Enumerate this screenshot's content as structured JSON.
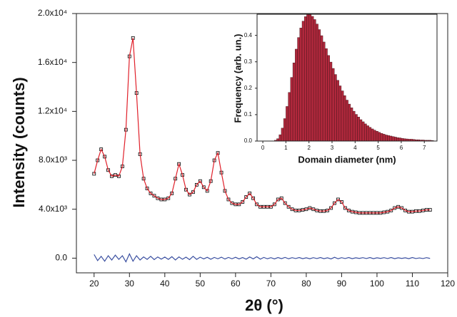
{
  "chart_data": [
    {
      "type": "line",
      "x_label": "2θ (°)",
      "y_label": "Intensity (counts)",
      "x": [
        20,
        21,
        22,
        23,
        24,
        25,
        26,
        27,
        28,
        29,
        30,
        31,
        32,
        33,
        34,
        35,
        36,
        37,
        38,
        39,
        40,
        41,
        42,
        43,
        44,
        45,
        46,
        47,
        48,
        49,
        50,
        51,
        52,
        53,
        54,
        55,
        56,
        57,
        58,
        59,
        60,
        61,
        62,
        63,
        64,
        65,
        66,
        67,
        68,
        69,
        70,
        71,
        72,
        73,
        74,
        75,
        76,
        77,
        78,
        79,
        80,
        81,
        82,
        83,
        84,
        85,
        86,
        87,
        88,
        89,
        90,
        91,
        92,
        93,
        94,
        95,
        96,
        97,
        98,
        99,
        100,
        101,
        102,
        103,
        104,
        105,
        106,
        107,
        108,
        109,
        110,
        111,
        112,
        113,
        114,
        115
      ],
      "series": [
        {
          "color": "#000000",
          "marker": "square",
          "values": [
            6900,
            8000,
            8900,
            8300,
            7200,
            6700,
            6800,
            6700,
            7500,
            10500,
            16500,
            18000,
            13500,
            8500,
            6500,
            5700,
            5300,
            5100,
            4900,
            4800,
            4800,
            4900,
            5300,
            6500,
            7700,
            6800,
            5600,
            5200,
            5400,
            6000,
            6300,
            5800,
            5500,
            6300,
            8000,
            8600,
            7000,
            5500,
            4800,
            4500,
            4400,
            4400,
            4600,
            5000,
            5300,
            4900,
            4400,
            4200,
            4200,
            4200,
            4200,
            4400,
            4800,
            4900,
            4500,
            4200,
            4000,
            3900,
            3900,
            3950,
            4000,
            4100,
            4000,
            3900,
            3850,
            3850,
            3900,
            4100,
            4500,
            4800,
            4600,
            4100,
            3900,
            3800,
            3750,
            3700,
            3700,
            3700,
            3700,
            3700,
            3700,
            3700,
            3750,
            3800,
            3900,
            4100,
            4200,
            4100,
            3900,
            3800,
            3800,
            3850,
            3850,
            3900,
            3950,
            3950
          ]
        },
        {
          "color": "#e0202a",
          "values": [
            6900,
            8000,
            8900,
            8300,
            7200,
            6700,
            6800,
            6700,
            7500,
            10500,
            16500,
            18000,
            13500,
            8500,
            6500,
            5700,
            5300,
            5100,
            4900,
            4800,
            4800,
            4900,
            5300,
            6500,
            7700,
            6800,
            5600,
            5200,
            5400,
            6000,
            6300,
            5800,
            5500,
            6300,
            8000,
            8600,
            7000,
            5500,
            4800,
            4500,
            4400,
            4400,
            4600,
            5000,
            5300,
            4900,
            4400,
            4200,
            4200,
            4200,
            4200,
            4400,
            4800,
            4900,
            4500,
            4200,
            4000,
            3900,
            3900,
            3950,
            4000,
            4100,
            4000,
            3900,
            3850,
            3850,
            3900,
            4100,
            4500,
            4800,
            4600,
            4100,
            3900,
            3800,
            3750,
            3700,
            3700,
            3700,
            3700,
            3700,
            3700,
            3700,
            3750,
            3800,
            3900,
            4100,
            4200,
            4100,
            3900,
            3800,
            3800,
            3850,
            3850,
            3900,
            3950,
            3950
          ]
        },
        {
          "color": "#3a4fa0",
          "values": [
            300,
            -200,
            150,
            -250,
            200,
            -150,
            250,
            -100,
            200,
            -300,
            350,
            -250,
            200,
            -150,
            100,
            -100,
            150,
            -120,
            100,
            -80,
            90,
            -100,
            120,
            -150,
            100,
            -90,
            80,
            -120,
            150,
            -100,
            80,
            -60,
            70,
            -90,
            60,
            -50,
            80,
            -70,
            60,
            -50,
            70,
            -60,
            50,
            -80,
            100,
            -60,
            120,
            -80,
            60,
            -50,
            40,
            -60,
            50,
            -40,
            60,
            -50,
            40,
            -30,
            50,
            -40,
            30,
            -50,
            40,
            -30,
            50,
            -40,
            30,
            -60,
            70,
            -50,
            40,
            -30,
            50,
            -40,
            30,
            -20,
            40,
            -30,
            50,
            -40,
            30,
            -20,
            40,
            -30,
            50,
            -40,
            30,
            -20,
            30,
            -40,
            50,
            -30,
            20,
            -30,
            40,
            -20
          ]
        }
      ],
      "xlim": [
        15,
        120
      ],
      "xticks": [
        20,
        30,
        40,
        50,
        60,
        70,
        80,
        90,
        100,
        110,
        120
      ],
      "ylim": [
        -1200,
        20000
      ],
      "yticks": [
        {
          "value": 0,
          "label": "0.0"
        },
        {
          "value": 4000,
          "label": "4.0x10³"
        },
        {
          "value": 8000,
          "label": "8.0x10³"
        },
        {
          "value": 12000,
          "label": "1.2x10⁴"
        },
        {
          "value": 16000,
          "label": "1.6x10⁴"
        },
        {
          "value": 20000,
          "label": "2.0x10⁴"
        }
      ]
    },
    {
      "type": "histogram",
      "x_label": "Domain diameter (nm)",
      "y_label": "Frequency (arb. un.)",
      "color": "#b0283c",
      "bins": [
        0.4,
        0.5,
        0.6,
        0.7,
        0.8,
        0.9,
        1.0,
        1.1,
        1.2,
        1.3,
        1.4,
        1.5,
        1.6,
        1.7,
        1.8,
        1.9,
        2.0,
        2.1,
        2.2,
        2.3,
        2.4,
        2.5,
        2.6,
        2.7,
        2.8,
        2.9,
        3.0,
        3.1,
        3.2,
        3.3,
        3.4,
        3.5,
        3.6,
        3.7,
        3.8,
        3.9,
        4.0,
        4.1,
        4.2,
        4.3,
        4.4,
        4.5,
        4.6,
        4.7,
        4.8,
        4.9,
        5.0,
        5.1,
        5.2,
        5.3,
        5.4,
        5.5,
        5.6,
        5.7,
        5.8,
        5.9,
        6.0,
        6.1,
        6.2,
        6.3,
        6.4,
        6.5,
        6.6,
        6.7,
        6.8,
        6.9,
        7.0,
        7.1,
        7.2,
        7.3,
        7.4
      ],
      "values": [
        0.0005,
        0.003,
        0.009,
        0.024,
        0.049,
        0.085,
        0.131,
        0.184,
        0.241,
        0.296,
        0.348,
        0.392,
        0.428,
        0.454,
        0.471,
        0.479,
        0.479,
        0.472,
        0.46,
        0.443,
        0.422,
        0.399,
        0.375,
        0.35,
        0.324,
        0.299,
        0.275,
        0.252,
        0.23,
        0.209,
        0.19,
        0.172,
        0.155,
        0.14,
        0.126,
        0.113,
        0.101,
        0.091,
        0.081,
        0.073,
        0.065,
        0.058,
        0.052,
        0.046,
        0.041,
        0.037,
        0.033,
        0.029,
        0.026,
        0.023,
        0.021,
        0.019,
        0.017,
        0.015,
        0.013,
        0.012,
        0.01,
        0.009,
        0.008,
        0.007,
        0.007,
        0.006,
        0.005,
        0.005,
        0.004,
        0.004,
        0.003,
        0.003,
        0.003,
        0.002
      ],
      "xlim": [
        -0.25,
        7.55
      ],
      "xticks": [
        0,
        1,
        2,
        3,
        4,
        5,
        6,
        7
      ],
      "ylim": [
        0,
        0.48
      ],
      "yticks": [
        {
          "value": 0,
          "label": "0.0"
        },
        0.1,
        0.2,
        0.3,
        0.4
      ]
    }
  ]
}
